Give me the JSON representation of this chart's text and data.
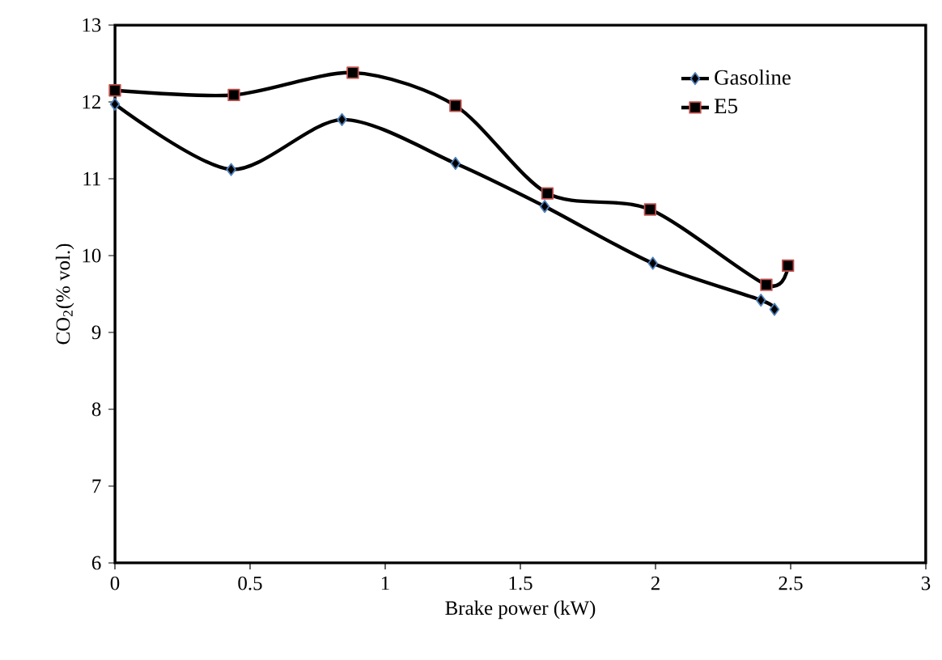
{
  "chart_data": {
    "type": "line",
    "xlabel": "Brake power  (kW)",
    "ylabel": "CO$_{2}$(% vol.)",
    "xlim": [
      0,
      3
    ],
    "xticks": [
      0,
      0.5,
      1,
      1.5,
      2,
      2.5,
      3
    ],
    "ylim": [
      6,
      13
    ],
    "yticks": [
      6,
      7,
      8,
      9,
      10,
      11,
      12,
      13
    ],
    "grid": false,
    "legend": "top right",
    "line_style": "solid",
    "series": [
      {
        "name": "Gasoline",
        "color": "#000000",
        "marker": "diamond",
        "x": [
          0,
          0.43,
          0.84,
          1.26,
          1.59,
          1.99,
          2.39,
          2.44
        ],
        "values": [
          11.97,
          11.12,
          11.77,
          11.2,
          10.64,
          9.9,
          9.42,
          9.3
        ]
      },
      {
        "name": "E5",
        "color": "#000000",
        "marker": "square",
        "x": [
          0,
          0.44,
          0.88,
          1.26,
          1.6,
          1.98,
          2.41,
          2.49
        ],
        "values": [
          12.15,
          12.09,
          12.38,
          11.95,
          10.81,
          10.6,
          9.62,
          9.87
        ]
      }
    ]
  }
}
